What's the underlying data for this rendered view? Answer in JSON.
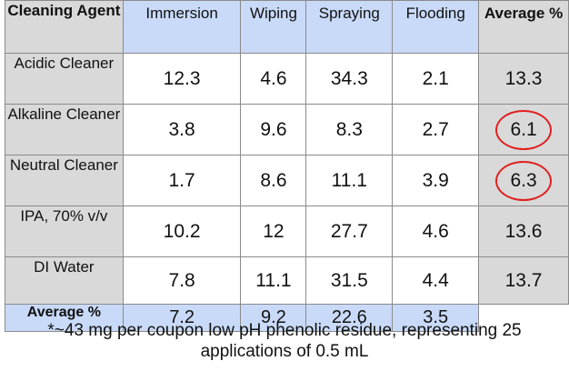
{
  "headers": [
    "Cleaning Agent",
    "Immersion",
    "Wiping",
    "Spraying",
    "Flooding",
    "Average %"
  ],
  "rows": [
    {
      "agent": "Acidic Cleaner",
      "values": [
        "12.3",
        "4.6",
        "34.3",
        "2.1"
      ],
      "average": "13.3",
      "circled": false
    },
    {
      "agent": "Alkaline Cleaner",
      "values": [
        "3.8",
        "9.6",
        "8.3",
        "2.7"
      ],
      "average": "6.1",
      "circled": true
    },
    {
      "agent": "Neutral Cleaner",
      "values": [
        "1.7",
        "8.6",
        "11.1",
        "3.9"
      ],
      "average": "6.3",
      "circled": true
    },
    {
      "agent": "IPA, 70% v/v",
      "values": [
        "10.2",
        "12",
        "27.7",
        "4.6"
      ],
      "average": "13.6",
      "circled": false
    },
    {
      "agent": "DI Water",
      "values": [
        "7.8",
        "11.1",
        "31.5",
        "4.4"
      ],
      "average": "13.7",
      "circled": false
    }
  ],
  "average_row": {
    "label": "Average %",
    "values": [
      "7.2",
      "9.2",
      "22.6",
      "3.5"
    ]
  },
  "footnote": "*~43 mg per coupon low pH phenolic residue, representing 25 applications of 0.5 mL",
  "colors": {
    "header_bg": "#c9daf8",
    "gray_bg": "#d9d9d9",
    "circle": "#e02020"
  }
}
